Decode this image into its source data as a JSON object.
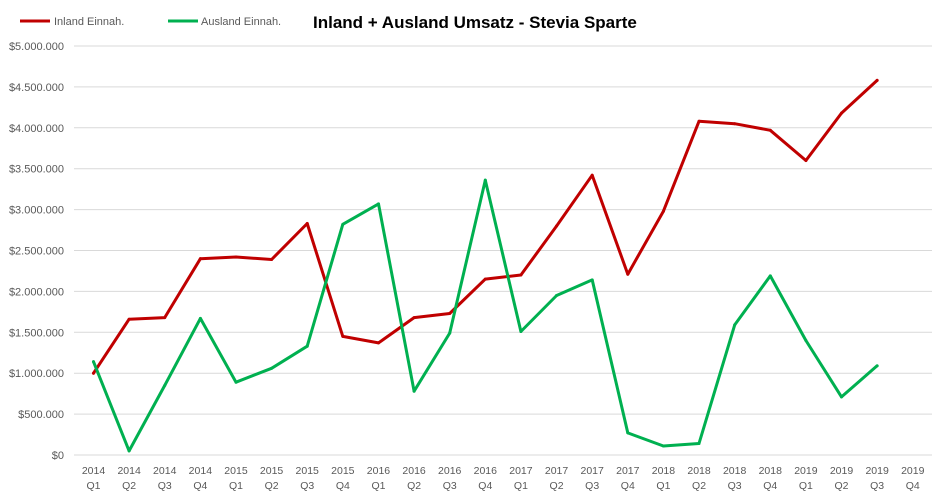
{
  "chart_data": {
    "type": "line",
    "title": "Inland + Ausland Umsatz - Stevia Sparte",
    "xlabel": "",
    "ylabel": "",
    "ylim": [
      0,
      5000000
    ],
    "y_ticks": [
      "$0",
      "$500.000",
      "$1.000.000",
      "$1.500.000",
      "$2.000.000",
      "$2.500.000",
      "$3.000.000",
      "$3.500.000",
      "$4.000.000",
      "$4.500.000",
      "$5.000.000"
    ],
    "categories": [
      [
        "2014",
        "Q1"
      ],
      [
        "2014",
        "Q2"
      ],
      [
        "2014",
        "Q3"
      ],
      [
        "2014",
        "Q4"
      ],
      [
        "2015",
        "Q1"
      ],
      [
        "2015",
        "Q2"
      ],
      [
        "2015",
        "Q3"
      ],
      [
        "2015",
        "Q4"
      ],
      [
        "2016",
        "Q1"
      ],
      [
        "2016",
        "Q2"
      ],
      [
        "2016",
        "Q3"
      ],
      [
        "2016",
        "Q4"
      ],
      [
        "2017",
        "Q1"
      ],
      [
        "2017",
        "Q2"
      ],
      [
        "2017",
        "Q3"
      ],
      [
        "2017",
        "Q4"
      ],
      [
        "2018",
        "Q1"
      ],
      [
        "2018",
        "Q2"
      ],
      [
        "2018",
        "Q3"
      ],
      [
        "2018",
        "Q4"
      ],
      [
        "2019",
        "Q1"
      ],
      [
        "2019",
        "Q2"
      ],
      [
        "2019",
        "Q3"
      ],
      [
        "2019",
        "Q4"
      ]
    ],
    "series": [
      {
        "name": "Inland Einnah.",
        "color": "#c00000",
        "values": [
          1000000,
          1660000,
          1680000,
          2400000,
          2420000,
          2390000,
          2830000,
          1450000,
          1370000,
          1680000,
          1730000,
          2150000,
          2200000,
          2800000,
          3420000,
          2210000,
          2980000,
          4080000,
          4050000,
          3970000,
          3600000,
          4180000,
          4580000,
          null
        ]
      },
      {
        "name": "Ausland Einnah.",
        "color": "#00b050",
        "values": [
          1140000,
          50000,
          850000,
          1670000,
          890000,
          1060000,
          1330000,
          2820000,
          3070000,
          780000,
          1490000,
          3360000,
          1510000,
          1950000,
          2140000,
          270000,
          110000,
          140000,
          1590000,
          2190000,
          1400000,
          710000,
          1090000,
          null
        ]
      }
    ],
    "legend_position": "top-left"
  }
}
